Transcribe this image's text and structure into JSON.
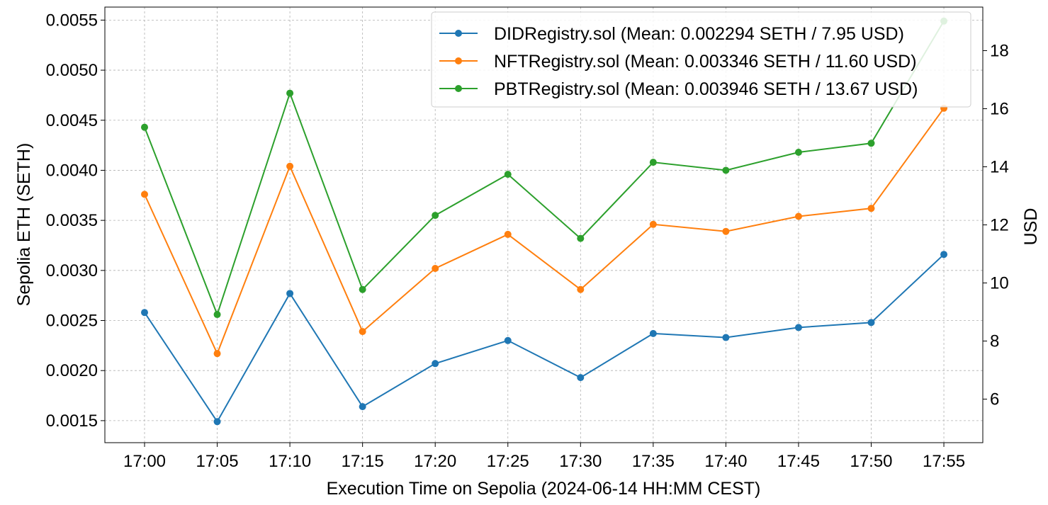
{
  "chart_data": {
    "type": "line",
    "title": "",
    "xlabel": "Execution Time on Sepolia (2024-06-14 HH:MM CEST)",
    "ylabel": "Sepolia ETH (SETH)",
    "ylabel_right": "USD",
    "categories": [
      "17:00",
      "17:05",
      "17:10",
      "17:15",
      "17:20",
      "17:25",
      "17:30",
      "17:35",
      "17:40",
      "17:45",
      "17:50",
      "17:55"
    ],
    "ylim": [
      0.00128,
      0.00563
    ],
    "ylim_right": [
      4.5,
      19.5
    ],
    "yticks": [
      0.0015,
      0.002,
      0.0025,
      0.003,
      0.0035,
      0.004,
      0.0045,
      0.005,
      0.0055
    ],
    "yticks_right": [
      6,
      8,
      10,
      12,
      14,
      16,
      18
    ],
    "grid": true,
    "legend_position": "top-right",
    "series": [
      {
        "name": "DIDRegistry.sol (Mean: 0.002294 SETH / 7.95 USD)",
        "color": "#1f77b4",
        "values": [
          0.00258,
          0.00149,
          0.00277,
          0.00164,
          0.00207,
          0.0023,
          0.00193,
          0.00237,
          0.00233,
          0.00243,
          0.00248,
          0.00316
        ]
      },
      {
        "name": "NFTRegistry.sol (Mean: 0.003346 SETH / 11.60 USD)",
        "color": "#ff7f0e",
        "values": [
          0.00376,
          0.00217,
          0.00404,
          0.00239,
          0.00302,
          0.00336,
          0.00281,
          0.00346,
          0.00339,
          0.00354,
          0.00362,
          0.00462
        ]
      },
      {
        "name": "PBTRegistry.sol (Mean: 0.003946 SETH / 13.67 USD)",
        "color": "#2ca02c",
        "values": [
          0.00443,
          0.00256,
          0.00477,
          0.00281,
          0.00355,
          0.00396,
          0.00332,
          0.00408,
          0.004,
          0.00418,
          0.00427,
          0.00549
        ]
      }
    ]
  }
}
